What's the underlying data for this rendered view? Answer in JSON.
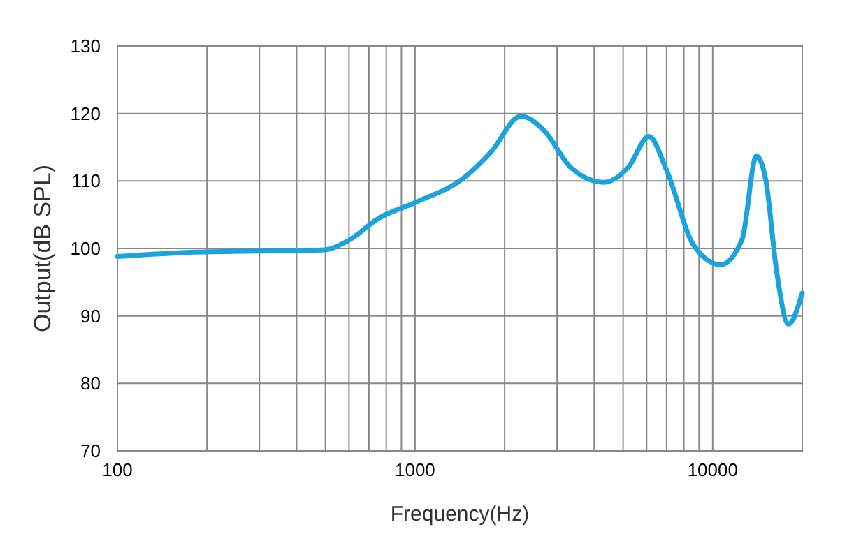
{
  "chart_data": {
    "type": "line",
    "xlabel": "Frequency(Hz)",
    "ylabel": "Output(dB SPL)",
    "log": "x",
    "grid": true,
    "marker": "none",
    "line_style": "solid",
    "xlim": [
      100,
      20000
    ],
    "ylim": [
      70,
      130
    ],
    "xticks": [
      100,
      {
        "value": 200,
        "label": null
      },
      {
        "value": 300,
        "label": null
      },
      {
        "value": 400,
        "label": null
      },
      {
        "value": 500,
        "label": null
      },
      {
        "value": 600,
        "label": null
      },
      {
        "value": 700,
        "label": null
      },
      {
        "value": 800,
        "label": null
      },
      {
        "value": 900,
        "label": null
      },
      1000,
      {
        "value": 2000,
        "label": null
      },
      {
        "value": 3000,
        "label": null
      },
      {
        "value": 4000,
        "label": null
      },
      {
        "value": 5000,
        "label": null
      },
      {
        "value": 6000,
        "label": null
      },
      {
        "value": 7000,
        "label": null
      },
      {
        "value": 8000,
        "label": null
      },
      {
        "value": 9000,
        "label": null
      },
      10000
    ],
    "yticks": [
      70,
      80,
      90,
      100,
      110,
      120,
      130
    ],
    "series": [
      {
        "color": "#1aa3dc",
        "x": [
          100,
          170,
          291,
          497,
          593,
          757,
          1000,
          1453,
          1800,
          2268,
          2710,
          3337,
          4306,
          5200,
          6110,
          7000,
          8630,
          10640,
          12550,
          14030,
          15100,
          16400,
          17970,
          20000
        ],
        "values": [
          98.8,
          99.4,
          99.6,
          99.8,
          101.1,
          104.5,
          106.8,
          110.4,
          114.3,
          119.6,
          117.5,
          112,
          109.8,
          112,
          116.6,
          111.6,
          100.5,
          97.6,
          101.3,
          113.7,
          110,
          96.6,
          88.8,
          93.4
        ]
      }
    ]
  }
}
